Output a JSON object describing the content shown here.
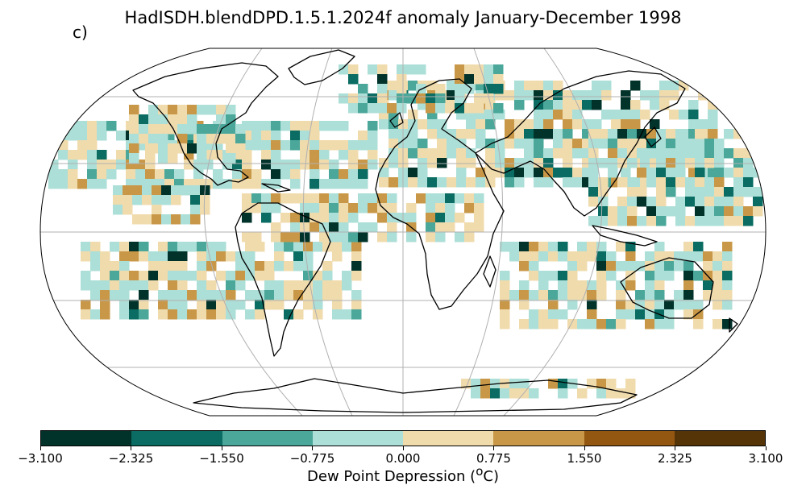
{
  "panel_label": "c)",
  "title": "HadISDH.blendDPD.1.5.1.2024f anomaly January-December 1998",
  "colorbar": {
    "label_text": "Dew Point Depression (",
    "label_sup": "o",
    "label_unit": "C)",
    "ticks": [
      "−3.100",
      "−2.325",
      "−1.550",
      "−0.775",
      "0.000",
      "0.775",
      "1.550",
      "2.325",
      "3.100"
    ],
    "colors": [
      "#01332b",
      "#0a6c62",
      "#4aa79a",
      "#acdfd7",
      "#f0dbad",
      "#c89848",
      "#935711",
      "#553408"
    ]
  },
  "map": {
    "projection": "Robinson",
    "graticule": "30 degrees",
    "ocean_color": "#ffffff",
    "coastline_color": "#000000"
  }
}
